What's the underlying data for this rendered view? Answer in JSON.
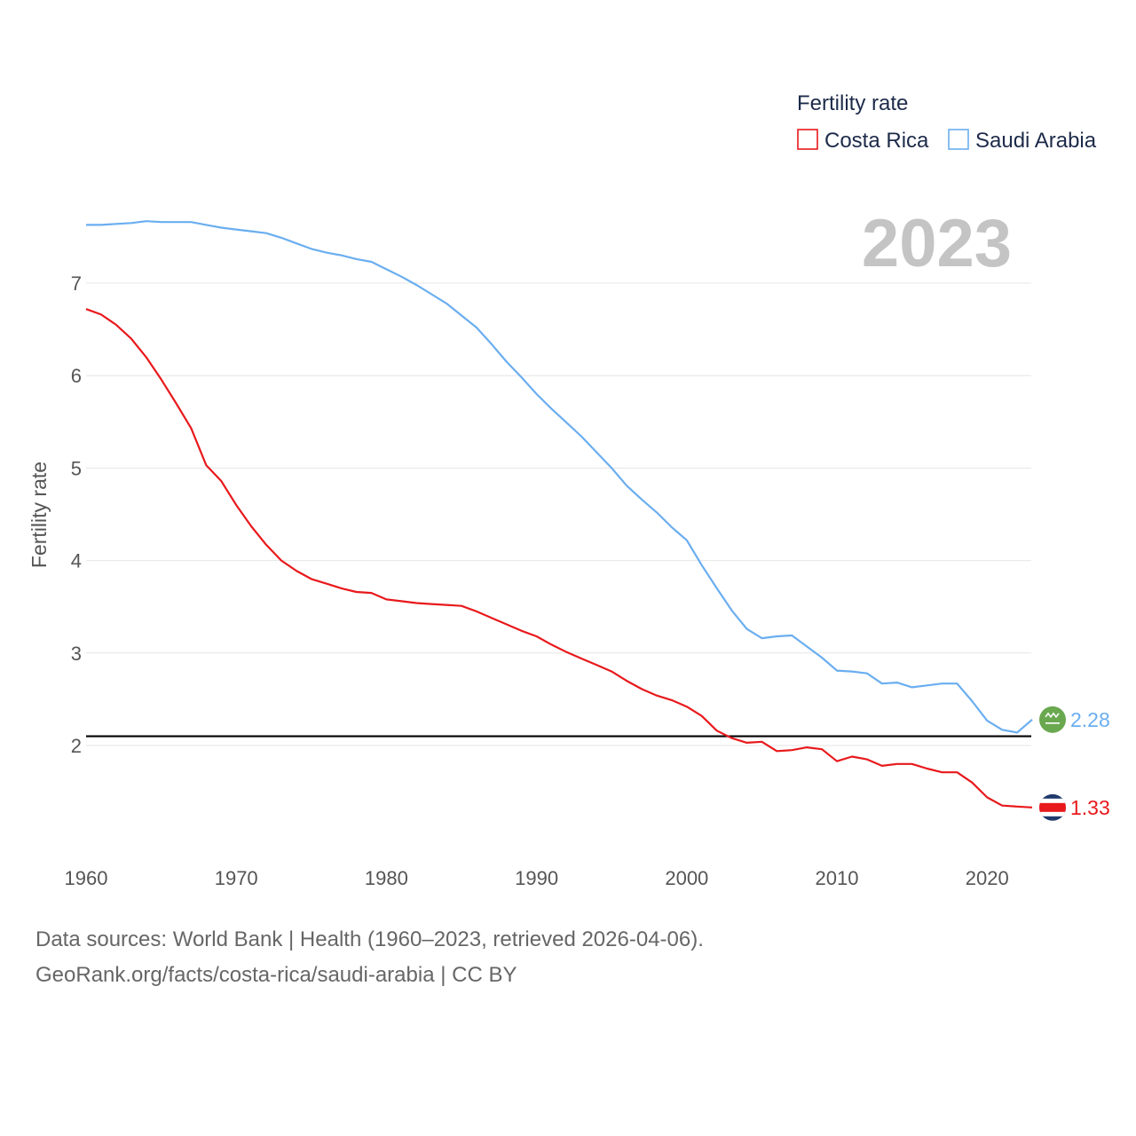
{
  "chart_data": {
    "type": "line",
    "ylabel": "Fertility rate",
    "xlabel": "",
    "xlim": [
      1960,
      2023
    ],
    "ylim": [
      0.8,
      7.9
    ],
    "yticks": [
      2,
      3,
      4,
      5,
      6,
      7
    ],
    "xticks": [
      1960,
      1970,
      1980,
      1990,
      2000,
      2010,
      2020
    ],
    "ytick_labels": [
      "2",
      "3",
      "4",
      "5",
      "6",
      "7"
    ],
    "xtick_labels": [
      "1960",
      "1970",
      "1980",
      "1990",
      "2000",
      "2010",
      "2020"
    ],
    "year_label": "2023",
    "reference_line": 2.1,
    "legend": {
      "title": "Fertility rate",
      "position": "top-right"
    },
    "series": [
      {
        "name": "Costa Rica",
        "color": "#e8191c",
        "end_label": "1.33",
        "flag": "costa-rica-flag-icon",
        "x": [
          1960,
          1961,
          1962,
          1963,
          1964,
          1965,
          1966,
          1967,
          1968,
          1969,
          1970,
          1971,
          1972,
          1973,
          1974,
          1975,
          1976,
          1977,
          1978,
          1979,
          1980,
          1981,
          1982,
          1983,
          1984,
          1985,
          1986,
          1987,
          1988,
          1989,
          1990,
          1991,
          1992,
          1993,
          1994,
          1995,
          1996,
          1997,
          1998,
          1999,
          2000,
          2001,
          2002,
          2003,
          2004,
          2005,
          2006,
          2007,
          2008,
          2009,
          2010,
          2011,
          2012,
          2013,
          2014,
          2015,
          2016,
          2017,
          2018,
          2019,
          2020,
          2021,
          2022,
          2023
        ],
        "values": [
          6.72,
          6.66,
          6.55,
          6.4,
          6.2,
          5.96,
          5.7,
          5.43,
          5.03,
          4.86,
          4.6,
          4.37,
          4.17,
          4.0,
          3.89,
          3.8,
          3.75,
          3.7,
          3.66,
          3.65,
          3.58,
          3.56,
          3.54,
          3.53,
          3.52,
          3.51,
          3.45,
          3.38,
          3.31,
          3.24,
          3.18,
          3.09,
          3.01,
          2.94,
          2.87,
          2.8,
          2.7,
          2.61,
          2.54,
          2.49,
          2.42,
          2.32,
          2.16,
          2.08,
          2.03,
          2.04,
          1.94,
          1.95,
          1.98,
          1.96,
          1.83,
          1.88,
          1.85,
          1.78,
          1.8,
          1.8,
          1.75,
          1.71,
          1.71,
          1.6,
          1.44,
          1.35,
          1.34,
          1.33
        ]
      },
      {
        "name": "Saudi Arabia",
        "color": "#6aaef0",
        "end_label": "2.28",
        "flag": "saudi-arabia-flag-icon",
        "x": [
          1960,
          1961,
          1962,
          1963,
          1964,
          1965,
          1966,
          1967,
          1968,
          1969,
          1970,
          1971,
          1972,
          1973,
          1974,
          1975,
          1976,
          1977,
          1978,
          1979,
          1980,
          1981,
          1982,
          1983,
          1984,
          1985,
          1986,
          1987,
          1988,
          1989,
          1990,
          1991,
          1992,
          1993,
          1994,
          1995,
          1996,
          1997,
          1998,
          1999,
          2000,
          2001,
          2002,
          2003,
          2004,
          2005,
          2006,
          2007,
          2008,
          2009,
          2010,
          2011,
          2012,
          2013,
          2014,
          2015,
          2016,
          2017,
          2018,
          2019,
          2020,
          2021,
          2022,
          2023
        ],
        "values": [
          7.63,
          7.63,
          7.64,
          7.65,
          7.67,
          7.66,
          7.66,
          7.66,
          7.63,
          7.6,
          7.58,
          7.56,
          7.54,
          7.49,
          7.43,
          7.37,
          7.33,
          7.3,
          7.26,
          7.23,
          7.15,
          7.07,
          6.98,
          6.88,
          6.78,
          6.65,
          6.52,
          6.34,
          6.15,
          5.98,
          5.8,
          5.64,
          5.49,
          5.34,
          5.17,
          5.0,
          4.81,
          4.66,
          4.52,
          4.36,
          4.22,
          3.95,
          3.7,
          3.46,
          3.26,
          3.16,
          3.18,
          3.19,
          3.07,
          2.95,
          2.81,
          2.8,
          2.78,
          2.67,
          2.68,
          2.63,
          2.65,
          2.67,
          2.67,
          2.48,
          2.27,
          2.17,
          2.14,
          2.28
        ]
      }
    ]
  },
  "source": {
    "line1": "Data sources: World Bank | Health (1960–2023, retrieved 2026-04-06).",
    "line2": "GeoRank.org/facts/costa-rica/saudi-arabia | CC BY"
  }
}
